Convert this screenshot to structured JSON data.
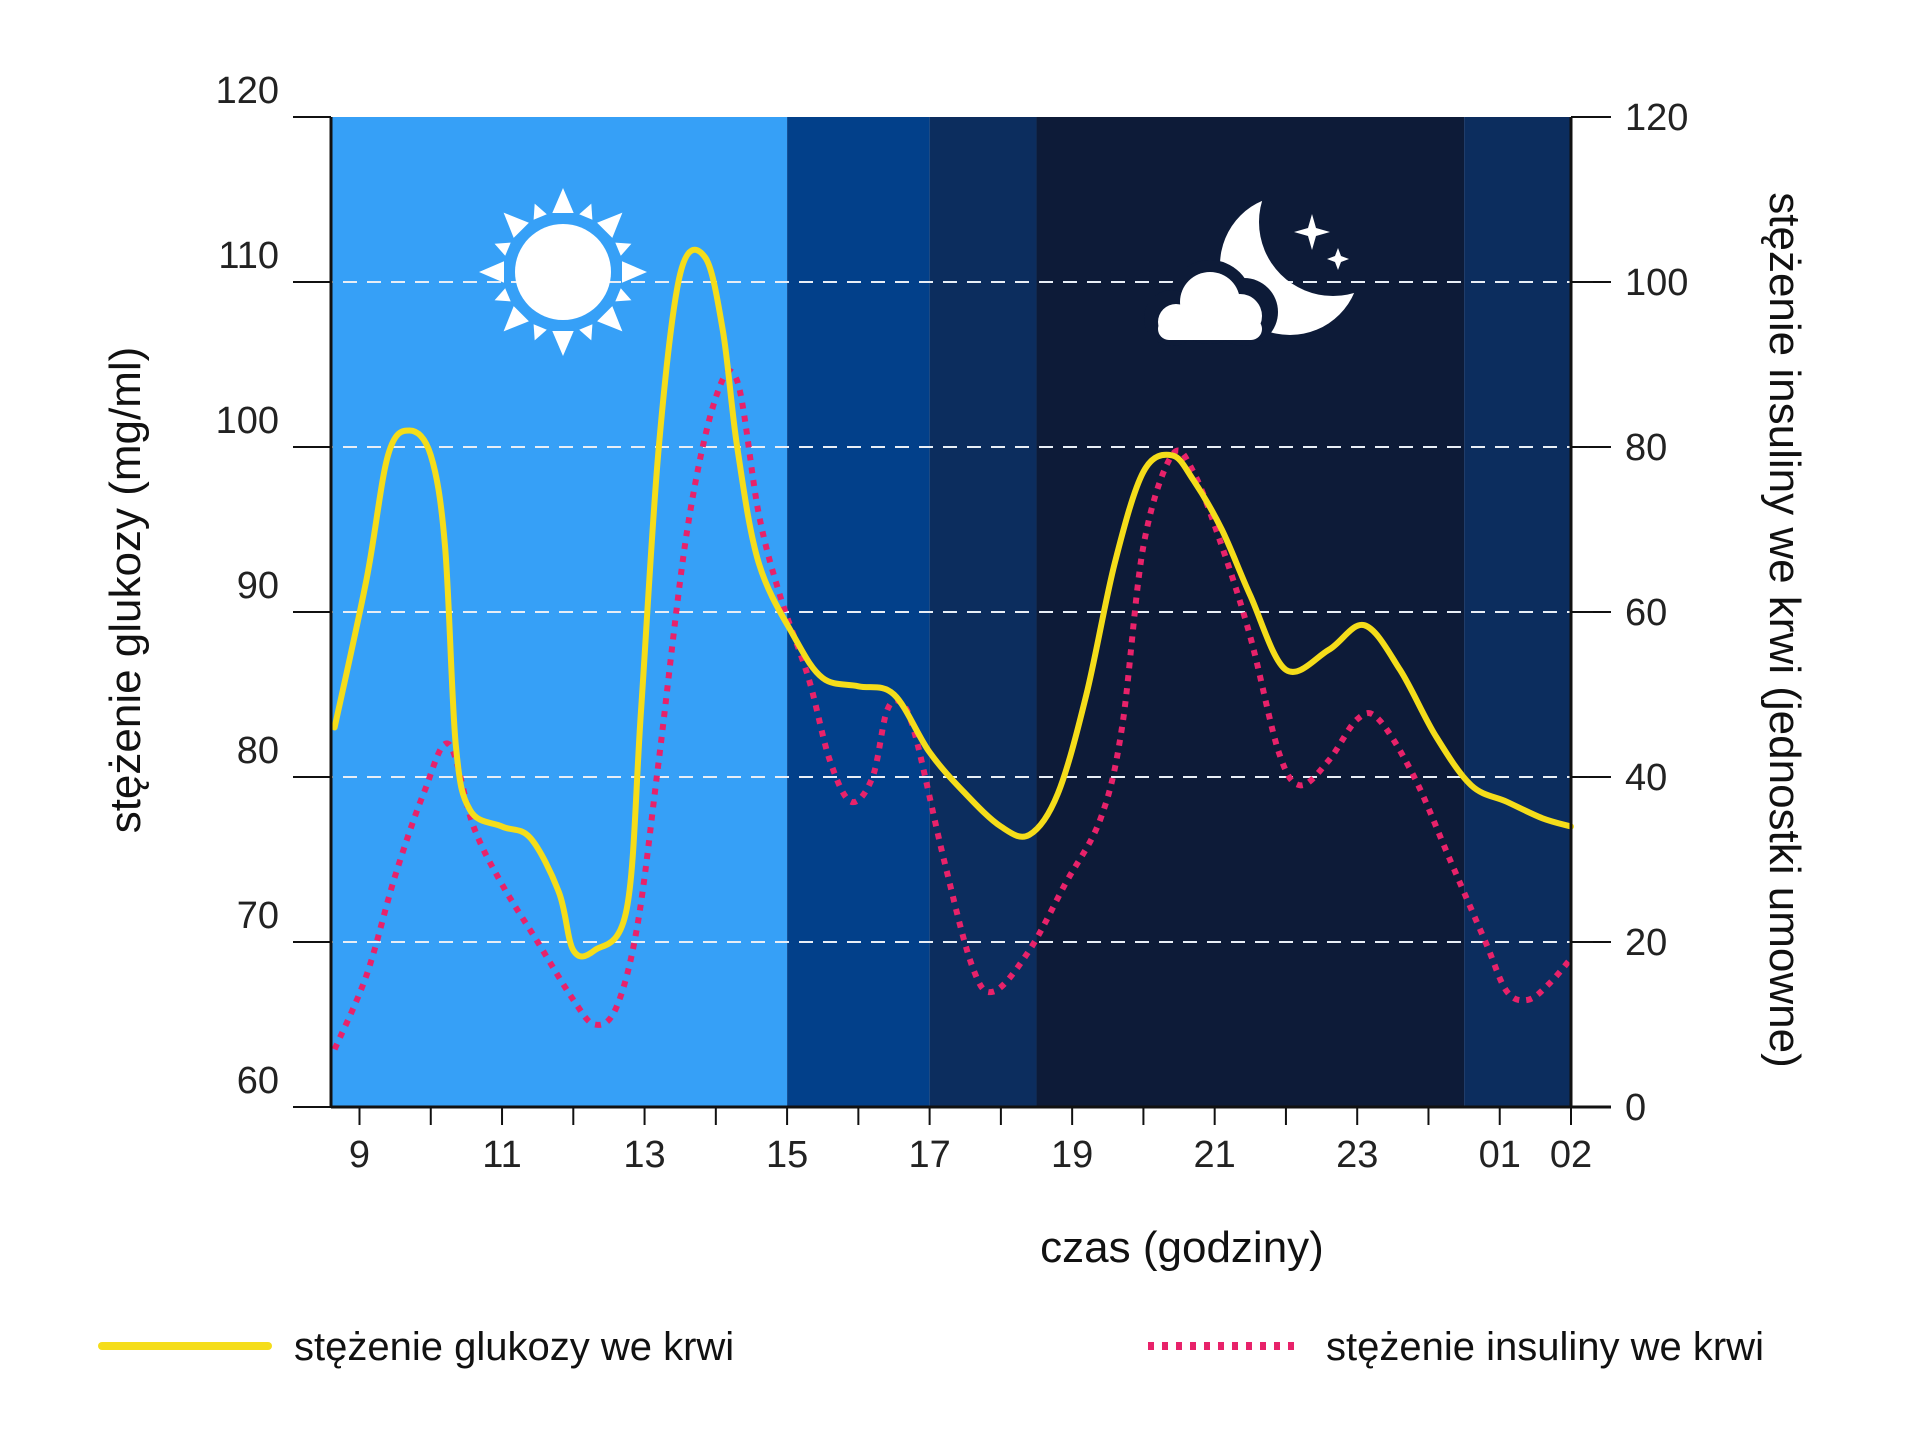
{
  "chart_data": {
    "type": "line",
    "x_axis": {
      "label": "czas (godziny)",
      "tick_labels": [
        "9",
        "11",
        "13",
        "15",
        "17",
        "19",
        "21",
        "23",
        "01",
        "02"
      ],
      "tick_hours": [
        9,
        11,
        13,
        15,
        17,
        19,
        21,
        23,
        25,
        26
      ],
      "range_hours": [
        8.6,
        26
      ]
    },
    "y_left": {
      "label": "stężenie glukozy (mg/ml)",
      "ticks": [
        60,
        70,
        80,
        90,
        100,
        110,
        120
      ],
      "range": [
        60,
        120
      ]
    },
    "y_right": {
      "label": "stężenie insuliny we krwi (jednostki umowne)",
      "ticks": [
        0,
        20,
        40,
        60,
        80,
        100,
        120
      ],
      "range": [
        0,
        120
      ]
    },
    "grid": "dashed horizontal at 70, 80, 90, 100, 110 mg/ml",
    "background_periods": [
      {
        "name": "day",
        "from": 8.6,
        "to": 15,
        "color": "#36a0f7"
      },
      {
        "name": "afternoon",
        "from": 15,
        "to": 17,
        "color": "#02408a"
      },
      {
        "name": "evening",
        "from": 17,
        "to": 18.5,
        "color": "#0c2d5e"
      },
      {
        "name": "night",
        "from": 18.5,
        "to": 24.5,
        "color": "#0d1b38"
      },
      {
        "name": "late-night",
        "from": 24.5,
        "to": 26,
        "color": "#0c2d5e"
      }
    ],
    "series": [
      {
        "name": "stężenie glukozy we krwi",
        "axis": "left",
        "color": "#f5dd1a",
        "style": "solid",
        "points": [
          [
            8.65,
            83
          ],
          [
            9.1,
            92
          ],
          [
            9.4,
            99.5
          ],
          [
            9.7,
            101
          ],
          [
            10.0,
            99.5
          ],
          [
            10.2,
            94
          ],
          [
            10.35,
            82
          ],
          [
            10.55,
            78
          ],
          [
            11.0,
            77
          ],
          [
            11.4,
            76.3
          ],
          [
            11.8,
            73
          ],
          [
            12.0,
            69.5
          ],
          [
            12.3,
            69.5
          ],
          [
            12.75,
            72
          ],
          [
            12.95,
            84
          ],
          [
            13.2,
            100
          ],
          [
            13.5,
            110.5
          ],
          [
            13.85,
            111.5
          ],
          [
            14.1,
            107
          ],
          [
            14.3,
            100
          ],
          [
            14.6,
            93
          ],
          [
            15.1,
            88.5
          ],
          [
            15.5,
            86
          ],
          [
            16.0,
            85.5
          ],
          [
            16.5,
            85
          ],
          [
            17.0,
            81.5
          ],
          [
            17.5,
            79
          ],
          [
            18.0,
            77
          ],
          [
            18.4,
            76.5
          ],
          [
            18.8,
            79
          ],
          [
            19.2,
            85
          ],
          [
            19.6,
            93
          ],
          [
            20.0,
            98.5
          ],
          [
            20.4,
            99.5
          ],
          [
            20.7,
            98
          ],
          [
            21.1,
            95
          ],
          [
            21.5,
            91
          ],
          [
            22.0,
            86.5
          ],
          [
            22.6,
            87.7
          ],
          [
            23.1,
            89.2
          ],
          [
            23.6,
            86.5
          ],
          [
            24.1,
            82.5
          ],
          [
            24.6,
            79.5
          ],
          [
            25.1,
            78.5
          ],
          [
            25.6,
            77.5
          ],
          [
            26.0,
            77
          ]
        ]
      },
      {
        "name": "stężenie insuliny we krwi",
        "axis": "right",
        "color": "#e8226a",
        "style": "dotted",
        "points": [
          [
            8.65,
            7
          ],
          [
            9.1,
            16
          ],
          [
            9.5,
            28
          ],
          [
            9.9,
            38
          ],
          [
            10.25,
            44
          ],
          [
            10.6,
            34
          ],
          [
            11.0,
            27
          ],
          [
            11.5,
            20
          ],
          [
            12.0,
            13
          ],
          [
            12.3,
            10
          ],
          [
            12.6,
            12
          ],
          [
            12.9,
            22
          ],
          [
            13.2,
            42
          ],
          [
            13.6,
            70
          ],
          [
            14.0,
            86
          ],
          [
            14.3,
            88
          ],
          [
            14.6,
            72
          ],
          [
            14.9,
            62
          ],
          [
            15.3,
            52
          ],
          [
            15.6,
            42
          ],
          [
            15.9,
            37
          ],
          [
            16.2,
            40
          ],
          [
            16.4,
            48
          ],
          [
            16.6,
            49
          ],
          [
            16.8,
            45
          ],
          [
            17.2,
            30
          ],
          [
            17.6,
            17
          ],
          [
            17.9,
            14
          ],
          [
            18.4,
            19
          ],
          [
            18.9,
            27
          ],
          [
            19.4,
            35
          ],
          [
            19.7,
            46
          ],
          [
            20.0,
            68
          ],
          [
            20.4,
            79
          ],
          [
            20.7,
            77
          ],
          [
            21.1,
            68
          ],
          [
            21.5,
            57
          ],
          [
            21.9,
            43
          ],
          [
            22.2,
            39
          ],
          [
            22.6,
            42
          ],
          [
            23.0,
            47
          ],
          [
            23.3,
            47
          ],
          [
            23.8,
            40
          ],
          [
            24.3,
            30
          ],
          [
            24.8,
            20
          ],
          [
            25.1,
            14
          ],
          [
            25.4,
            13
          ],
          [
            25.7,
            15
          ],
          [
            26.0,
            18
          ]
        ]
      }
    ]
  },
  "legend": {
    "glucose_label": "stężenie glukozy we krwi",
    "insulin_label": "stężenie insuliny we krwi"
  },
  "colors": {
    "glucose": "#f5dd1a",
    "insulin": "#e8226a",
    "grid": "#e8eef6",
    "axis": "#111111"
  },
  "icons": {
    "day": "sun-icon",
    "night": "moon-stars-cloud-icon"
  }
}
